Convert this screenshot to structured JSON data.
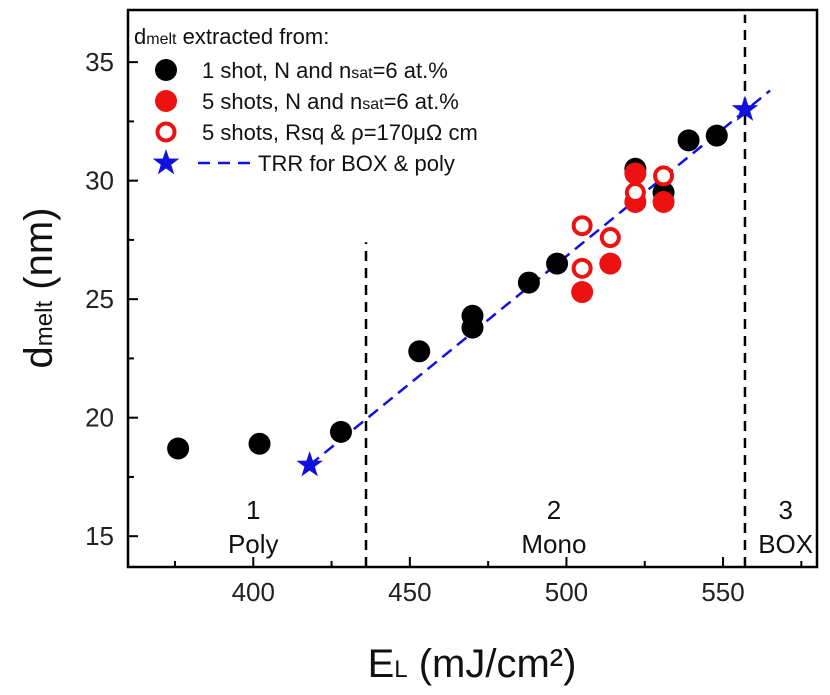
{
  "chart_data": {
    "type": "scatter",
    "xlabel_main": "E",
    "xlabel_sub": "L",
    "xlabel_rest": " (mJ/cm²)",
    "ylabel_main": "d",
    "ylabel_sub": "melt",
    "ylabel_rest": " (nm)",
    "xlim": [
      360,
      580
    ],
    "ylim": [
      13.7,
      37.2
    ],
    "xticks": [
      400,
      450,
      500,
      550
    ],
    "yticks": [
      15,
      20,
      25,
      30,
      35
    ],
    "legend": {
      "title_main": "d",
      "title_sub": "melt",
      "title_rest": " extracted from:",
      "entries": [
        {
          "main": "1 shot,  N and n",
          "sub": "sat",
          "rest": "=6 at.%"
        },
        {
          "main": "5 shots, N and n",
          "sub": "sat",
          "rest": "=6 at.%"
        },
        {
          "main": "5 shots, Rsq & ρ=170μΩ cm",
          "sub": "",
          "rest": ""
        },
        {
          "main": "TRR for BOX & poly",
          "sub": "",
          "rest": ""
        }
      ]
    },
    "series": [
      {
        "name": "1 shot, N and nsat=6 at.%",
        "marker": "filled-circle",
        "color": "#000000",
        "points": [
          [
            376,
            18.7
          ],
          [
            402,
            18.9
          ],
          [
            428,
            19.4
          ],
          [
            453,
            22.8
          ],
          [
            470,
            24.3
          ],
          [
            470,
            23.8
          ],
          [
            488,
            25.7
          ],
          [
            497,
            26.5
          ],
          [
            522,
            30.5
          ],
          [
            531,
            29.5
          ],
          [
            539,
            31.7
          ],
          [
            548,
            31.9
          ]
        ]
      },
      {
        "name": "5 shots, N and nsat=6 at.%",
        "marker": "filled-circle",
        "color": "#ee1111",
        "points": [
          [
            505,
            25.3
          ],
          [
            514,
            26.5
          ],
          [
            522,
            30.3
          ],
          [
            522,
            29.1
          ],
          [
            531,
            29.1
          ]
        ]
      },
      {
        "name": "5 shots, Rsq & rho=170 uOhm cm",
        "marker": "open-circle",
        "color": "#ee1111",
        "points": [
          [
            505,
            28.1
          ],
          [
            505,
            26.3
          ],
          [
            514,
            27.6
          ],
          [
            522,
            29.5
          ],
          [
            531,
            30.2
          ]
        ]
      },
      {
        "name": "TRR for BOX & poly",
        "marker": "star",
        "color": "#1111dd",
        "points": [
          [
            418,
            18.0
          ],
          [
            557,
            33.0
          ]
        ]
      }
    ],
    "trend_line": {
      "x": [
        418,
        565
      ],
      "y": [
        18.0,
        33.8
      ],
      "color": "#1111dd",
      "style": "dashed"
    },
    "vlines": [
      {
        "x": 436,
        "y_top": 27.4
      },
      {
        "x": 557,
        "y_top": 37.0
      }
    ],
    "regions": [
      {
        "num": "1",
        "label": "Poly",
        "x": 400
      },
      {
        "num": "2",
        "label": "Mono",
        "x": 496
      },
      {
        "num": "3",
        "label": "BOX",
        "x": 570
      }
    ]
  }
}
